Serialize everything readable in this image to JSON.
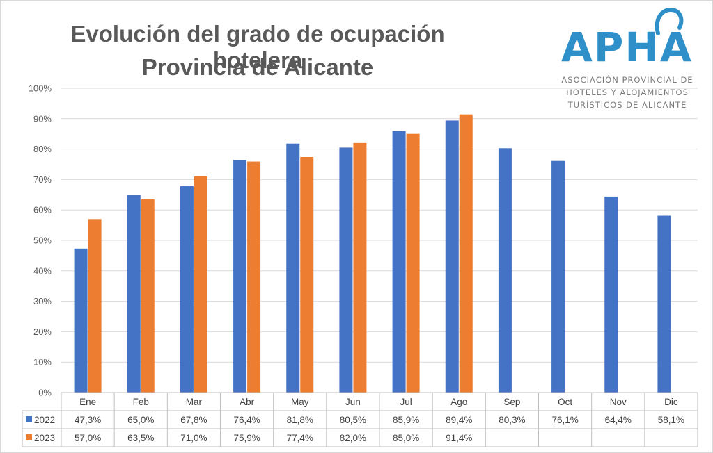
{
  "header": {
    "title_line1": "Evolución del grado de ocupación hotelera",
    "title_line2": "Provincia de Alicante"
  },
  "logo": {
    "name": "APHA",
    "subtitle_line1": "ASOCIACIÓN PROVINCIAL DE",
    "subtitle_line2": "HOTELES Y ALOJAMIENTOS",
    "subtitle_line3": "TURÍSTICOS DE ALICANTE",
    "color": "#2e8fc9"
  },
  "chart_data": {
    "type": "bar",
    "title": "Evolución del grado de ocupación hotelera Provincia de Alicante",
    "categories": [
      "Ene",
      "Feb",
      "Mar",
      "Abr",
      "May",
      "Jun",
      "Jul",
      "Ago",
      "Sep",
      "Oct",
      "Nov",
      "Dic"
    ],
    "series": [
      {
        "name": "2022",
        "color": "#4472c4",
        "values": [
          47.3,
          65.0,
          67.8,
          76.4,
          81.8,
          80.5,
          85.9,
          89.4,
          80.3,
          76.1,
          64.4,
          58.1
        ],
        "labels": [
          "47,3%",
          "65,0%",
          "67,8%",
          "76,4%",
          "81,8%",
          "80,5%",
          "85,9%",
          "89,4%",
          "80,3%",
          "76,1%",
          "64,4%",
          "58,1%"
        ]
      },
      {
        "name": "2023",
        "color": "#ed7d31",
        "values": [
          57.0,
          63.5,
          71.0,
          75.9,
          77.4,
          82.0,
          85.0,
          91.4,
          null,
          null,
          null,
          null
        ],
        "labels": [
          "57,0%",
          "63,5%",
          "71,0%",
          "75,9%",
          "77,4%",
          "82,0%",
          "85,0%",
          "91,4%",
          "",
          "",
          "",
          ""
        ]
      }
    ],
    "ylim": [
      0,
      100
    ],
    "yticks": [
      "0%",
      "10%",
      "20%",
      "30%",
      "40%",
      "50%",
      "60%",
      "70%",
      "80%",
      "90%",
      "100%"
    ],
    "grid": true,
    "legend": "data-table",
    "xlabel": "",
    "ylabel": ""
  }
}
